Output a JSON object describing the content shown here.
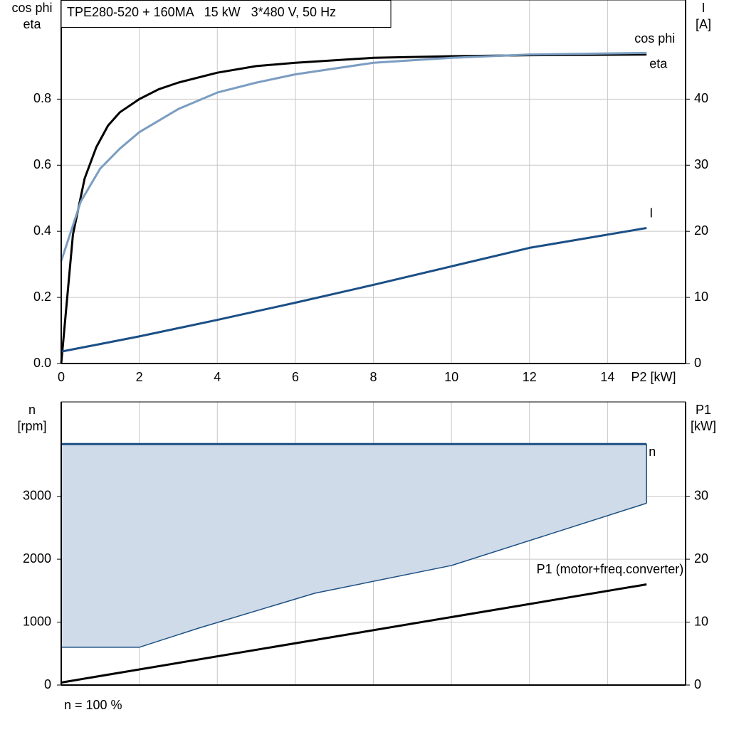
{
  "chart_data": [
    {
      "type": "line",
      "title": "TPE280-520 + 160MA   15 kW   3*480 V, 50 Hz",
      "y_label": [
        "cos phi",
        "eta"
      ],
      "y2_label": [
        "I",
        "[A]"
      ],
      "x_label": "P2 [kW]",
      "xlim": [
        0,
        16
      ],
      "xticks": [
        0,
        2,
        4,
        6,
        8,
        10,
        12,
        14
      ],
      "ylim": [
        0,
        1.1
      ],
      "yticks": [
        {
          "value": 0,
          "label": "0.0"
        },
        0.2,
        0.4,
        0.6,
        0.8
      ],
      "y2lim": [
        0,
        55
      ],
      "y2ticks": [
        0,
        10,
        20,
        30,
        40
      ],
      "grid": true,
      "series": [
        {
          "name": "eta",
          "color": "#000000",
          "x": [
            0,
            0.3,
            0.6,
            0.9,
            1.2,
            1.5,
            2,
            2.5,
            3,
            4,
            5,
            6,
            8,
            10,
            12,
            15
          ],
          "values": [
            0,
            0.39,
            0.56,
            0.655,
            0.72,
            0.76,
            0.8,
            0.83,
            0.85,
            0.88,
            0.9,
            0.91,
            0.925,
            0.93,
            0.933,
            0.935
          ]
        },
        {
          "name": "cos phi",
          "color": "#7b9dc1",
          "x": [
            0,
            0.5,
            1,
            1.5,
            2,
            3,
            4,
            5,
            6,
            8,
            10,
            12,
            15
          ],
          "values": [
            0.31,
            0.49,
            0.59,
            0.65,
            0.7,
            0.77,
            0.82,
            0.85,
            0.875,
            0.91,
            0.925,
            0.935,
            0.94
          ]
        },
        {
          "name": "I",
          "color": "#1b4f86",
          "axis": "y2",
          "x": [
            0,
            2,
            4,
            6,
            8,
            10,
            12,
            15
          ],
          "values": [
            1.8,
            4.1,
            6.6,
            9.2,
            11.9,
            14.7,
            17.5,
            20.5
          ]
        }
      ]
    },
    {
      "type": "area",
      "y_label": [
        "n",
        "[rpm]"
      ],
      "y2_label": [
        "P1",
        "[kW]"
      ],
      "footnote": "n = 100 %",
      "xlim": [
        0,
        16
      ],
      "xticks": [
        0,
        2,
        4,
        6,
        8,
        10,
        12,
        14
      ],
      "xtick_labels": false,
      "ylim": [
        0,
        4500
      ],
      "yticks": [
        0,
        1000,
        2000,
        3000
      ],
      "y2lim": [
        0,
        45
      ],
      "y2ticks": [
        0,
        10,
        20,
        30
      ],
      "grid": true,
      "series": [
        {
          "name": "n",
          "color": "#1c4f82",
          "fill": "#cfdbe8",
          "x": [
            0,
            15
          ],
          "values": [
            3830,
            3830
          ],
          "min_x": [
            0,
            2,
            3.5,
            6.5,
            10,
            15
          ],
          "min_values": [
            600,
            600,
            900,
            1460,
            1900,
            2890
          ]
        },
        {
          "name": "P1 (motor+freq.converter)",
          "color": "#000000",
          "axis": "y2",
          "x": [
            0,
            15
          ],
          "values": [
            0.4,
            16
          ]
        }
      ]
    }
  ]
}
